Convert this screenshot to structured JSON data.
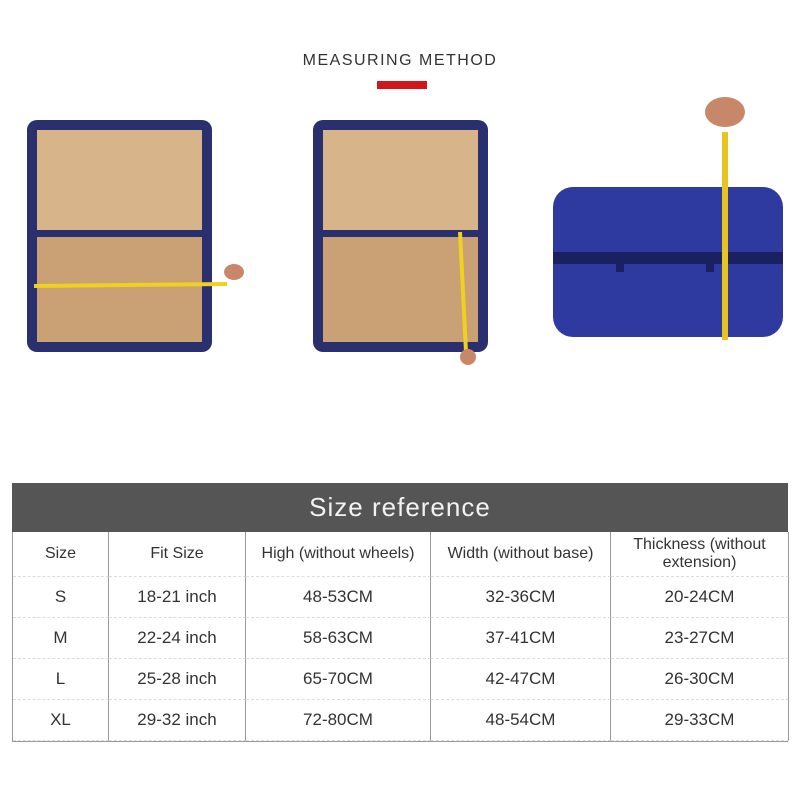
{
  "header": {
    "title": "MEASURING METHOD",
    "accent": "#d0161b"
  },
  "photos": [
    {
      "icon": "suitcase-width-measure"
    },
    {
      "icon": "suitcase-height-measure"
    },
    {
      "icon": "suitcase-thickness-measure"
    }
  ],
  "table": {
    "title": "Size reference",
    "columns": [
      "Size",
      "Fit Size",
      "High (without wheels)",
      "Width (without base)",
      "Thickness (without extension)"
    ],
    "rows": [
      [
        "S",
        "18-21 inch",
        "48-53CM",
        "32-36CM",
        "20-24CM"
      ],
      [
        "M",
        "22-24 inch",
        "58-63CM",
        "37-41CM",
        "23-27CM"
      ],
      [
        "L",
        "25-28 inch",
        "65-70CM",
        "42-47CM",
        "26-30CM"
      ],
      [
        "XL",
        "29-32 inch",
        "72-80CM",
        "48-54CM",
        "29-33CM"
      ]
    ]
  }
}
